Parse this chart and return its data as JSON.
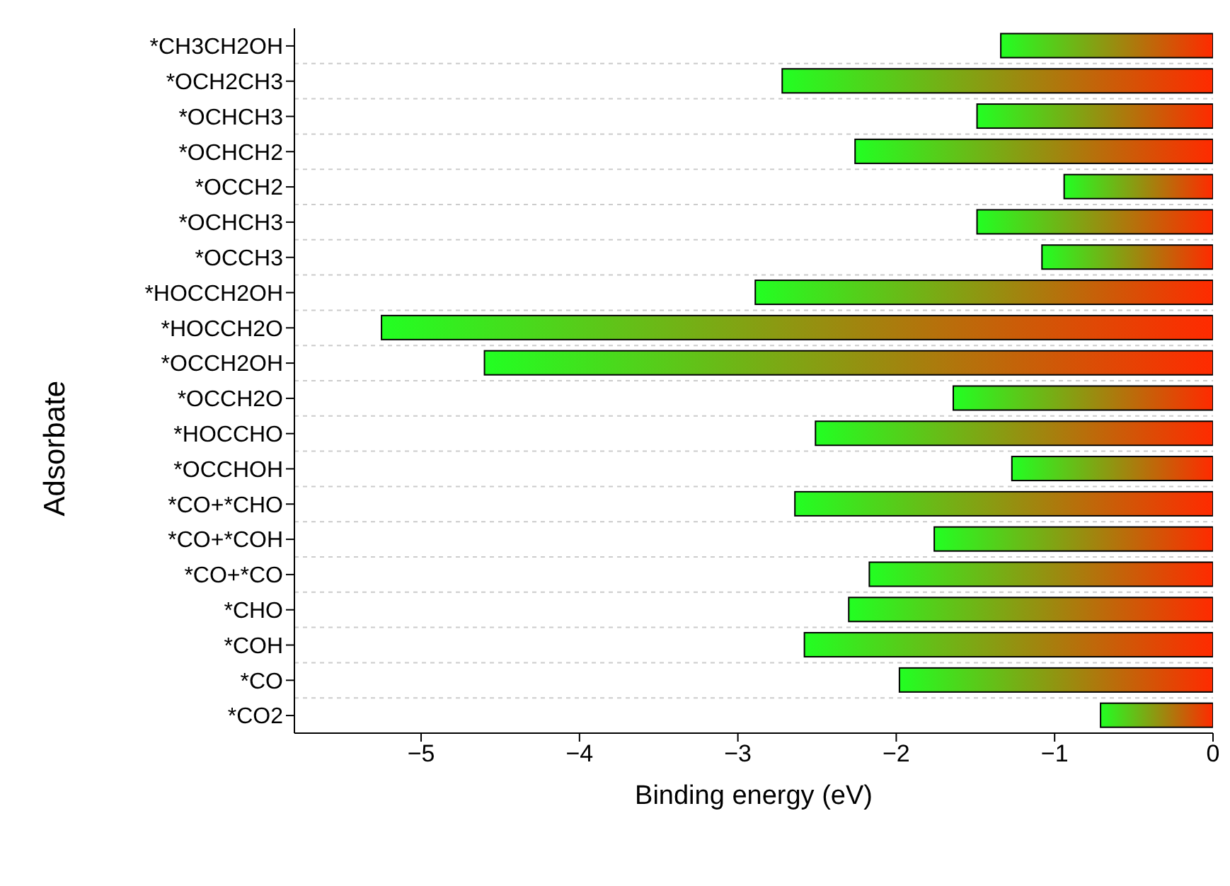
{
  "chart_data": {
    "type": "bar",
    "orientation": "horizontal",
    "xlabel": "Binding energy (eV)",
    "ylabel": "Adsorbate",
    "categories": [
      "*CH3CH2OH",
      "*OCH2CH3",
      "*OCHCH3",
      "*OCHCH2",
      "*OCCH2",
      "*OCHCH3",
      "*OCCH3",
      "*HOCCH2OH",
      "*HOCCH2O",
      "*OCCH2OH",
      "*OCCH2O",
      "*HOCCHO",
      "*OCCHOH",
      "*CO+*CHO",
      "*CO+*COH",
      "*CO+*CO",
      "*CHO",
      "*COH",
      "*CO",
      "*CO2"
    ],
    "series": [
      {
        "color": "#ff2a00",
        "values": [
          -1.34,
          -2.72,
          -1.49,
          -2.26,
          -0.94,
          -1.49,
          -1.08,
          -2.89,
          -5.25,
          -4.6,
          -1.64,
          -2.51,
          -1.27,
          -2.64,
          -1.76,
          -2.17,
          -2.3,
          -2.58,
          -1.98,
          -0.71
        ]
      }
    ],
    "xlim": [
      -5.8,
      0
    ],
    "xticks": [
      {
        "value": -5,
        "label": "−5"
      },
      {
        "value": -4,
        "label": "−4"
      },
      {
        "value": -3,
        "label": "−3"
      },
      {
        "value": -2,
        "label": "−2"
      },
      {
        "value": -1,
        "label": "−1"
      },
      0
    ],
    "grid": "y"
  }
}
